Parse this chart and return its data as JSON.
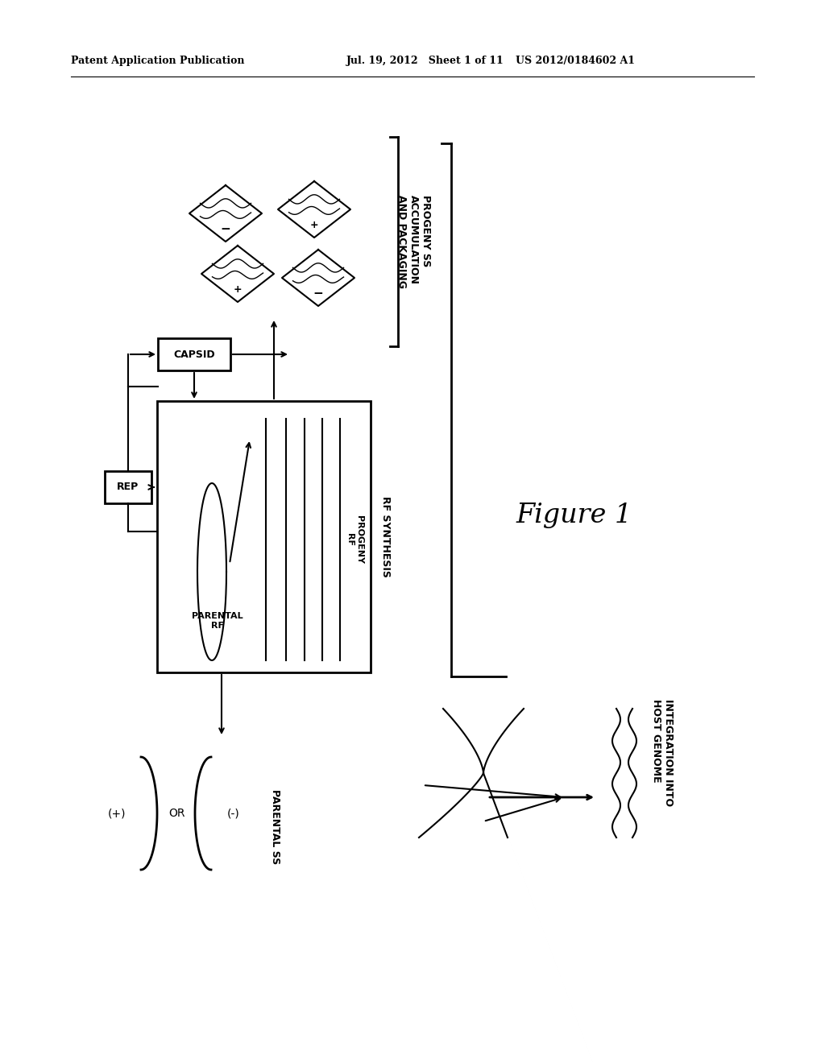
{
  "bg_color": "#ffffff",
  "header_left": "Patent Application Publication",
  "header_mid": "Jul. 19, 2012   Sheet 1 of 11",
  "header_right": "US 2012/0184602 A1",
  "figure_label": "Figure 1",
  "label_capsid": "CAPSID",
  "label_rep": "REP",
  "label_progeny_rf": "PROGENY\nRF",
  "label_parental_rf": "PARENTAL\nRF",
  "label_rf_synthesis": "RF SYNTHESIS",
  "label_progeny_ss": "PROGENY SS\nACCUMULATION\nAND PACKAGING",
  "label_parental_ss": "PARENTAL SS",
  "label_plus": "(+)",
  "label_or": "OR",
  "label_minus": "(-)",
  "label_integration": "INTEGRATION INTO\nHOST GENOME"
}
